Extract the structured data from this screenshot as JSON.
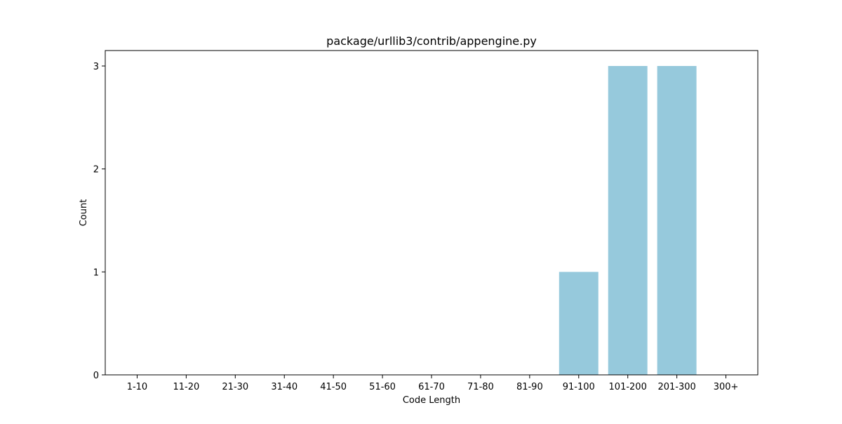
{
  "chart_data": {
    "type": "bar",
    "title": "package/urllib3/contrib/appengine.py",
    "xlabel": "Code Length",
    "ylabel": "Count",
    "categories": [
      "1-10",
      "11-20",
      "21-30",
      "31-40",
      "41-50",
      "51-60",
      "61-70",
      "71-80",
      "81-90",
      "91-100",
      "101-200",
      "201-300",
      "300+"
    ],
    "values": [
      0,
      0,
      0,
      0,
      0,
      0,
      0,
      0,
      0,
      1,
      3,
      3,
      0
    ],
    "ylim": [
      0,
      3.15
    ],
    "yticks": [
      0,
      1,
      2,
      3
    ],
    "bar_color": "#96c9dc",
    "grid": false
  }
}
